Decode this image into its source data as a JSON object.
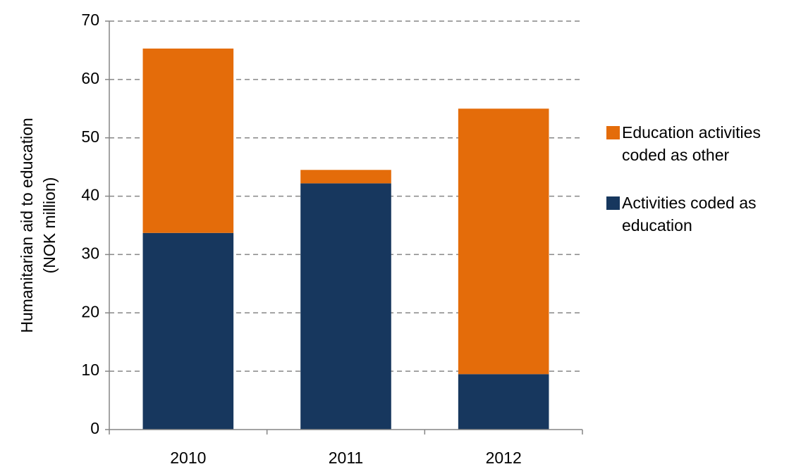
{
  "chart_data": {
    "type": "stacked-bar",
    "ylabel": [
      "Humanitarian aid to education",
      "(NOK million)"
    ],
    "categories": [
      "2010",
      "2011",
      "2012"
    ],
    "series": [
      {
        "name": "Activities coded as education",
        "color": "#17375e",
        "values": [
          33.7,
          42.2,
          9.5
        ]
      },
      {
        "name": "Education activities coded as other",
        "color": "#e46c0a",
        "values": [
          31.6,
          2.3,
          45.5
        ]
      }
    ],
    "ylim": [
      0,
      70
    ],
    "yticks": [
      0,
      10,
      20,
      30,
      40,
      50,
      60,
      70
    ],
    "grid": true,
    "legend": "right"
  }
}
